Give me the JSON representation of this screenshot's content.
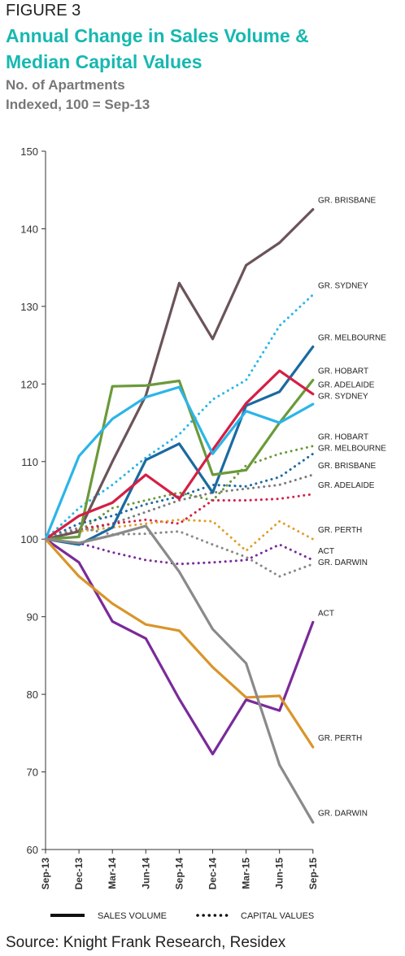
{
  "figure_label": "FIGURE 3",
  "title_line1": "Annual Change in Sales Volume &",
  "title_line2": "Median Capital Values",
  "subtitle_line1": "No. of Apartments",
  "subtitle_line2": "Indexed, 100 = Sep-13",
  "source": "Source: Knight Frank Research, Residex",
  "chart_data": {
    "type": "line",
    "title": "Annual Change in Sales Volume & Median Capital Values",
    "ylim": [
      60,
      150
    ],
    "yticks": [
      60,
      70,
      80,
      90,
      100,
      110,
      120,
      130,
      140,
      150
    ],
    "categories": [
      "Sep-13",
      "Dec-13",
      "Mar-14",
      "Jun-14",
      "Sep-14",
      "Dec-14",
      "Mar-15",
      "Jun-15",
      "Sep-15"
    ],
    "grid": false,
    "legend": [
      {
        "label": "SALES VOLUME",
        "style": "solid"
      },
      {
        "label": "CAPITAL VALUES",
        "style": "dotted"
      }
    ],
    "series": [
      {
        "name": "GR. BRISBANE",
        "style": "solid",
        "color": "#6b5458",
        "values": [
          100,
          101,
          110,
          118.5,
          133,
          125.8,
          135.3,
          138.2,
          142.5
        ]
      },
      {
        "name": "GR. SYDNEY",
        "style": "dotted",
        "color": "#2bb5e8",
        "values": [
          100,
          104,
          107,
          110.5,
          113.5,
          118,
          120.5,
          127.5,
          131.5
        ]
      },
      {
        "name": "GR. MELBOURNE",
        "style": "solid",
        "color": "#1a6aa0",
        "values": [
          100,
          99.3,
          101.5,
          110.2,
          112.3,
          106,
          117.2,
          119,
          124.8
        ]
      },
      {
        "name": "GR. HOBART",
        "style": "solid",
        "color": "#6b9a3a",
        "values": [
          100,
          100.3,
          119.7,
          119.8,
          120.4,
          108.3,
          108.9,
          115,
          120.5
        ]
      },
      {
        "name": "GR. ADELAIDE",
        "style": "solid",
        "color": "#d41f45",
        "values": [
          100,
          103,
          104.7,
          108.3,
          105.2,
          111.5,
          117.5,
          121.7,
          118.7
        ]
      },
      {
        "name": "GR. SYDNEY",
        "style": "solid",
        "color": "#2bb5e8",
        "values": [
          100,
          110.7,
          115.5,
          118.3,
          119.6,
          111,
          116.5,
          115,
          117.4
        ]
      },
      {
        "name": "GR. HOBART",
        "style": "dotted",
        "color": "#6b9a3a",
        "values": [
          100,
          101,
          104,
          105,
          106,
          105,
          109.5,
          111,
          112
        ]
      },
      {
        "name": "GR. MELBOURNE",
        "style": "dotted",
        "color": "#1a6aa0",
        "values": [
          100,
          102,
          103,
          104.5,
          105.5,
          107,
          106.8,
          108,
          111
        ]
      },
      {
        "name": "GR. BRISBANE",
        "style": "dotted",
        "color": "#7a7a7a",
        "values": [
          100,
          101,
          102,
          103.5,
          105,
          106,
          106.5,
          107,
          108.3
        ]
      },
      {
        "name": "GR. ADELAIDE",
        "style": "dotted",
        "color": "#d41f45",
        "values": [
          100,
          101.3,
          102,
          102.5,
          102,
          105,
          105,
          105.2,
          105.8
        ]
      },
      {
        "name": "GR. PERTH",
        "style": "dotted",
        "color": "#e0a030",
        "values": [
          100,
          101,
          101.5,
          102,
          102.5,
          102.3,
          98.5,
          102.3,
          100
        ]
      },
      {
        "name": "ACT",
        "style": "dotted",
        "color": "#7a2a9a",
        "values": [
          100,
          99.5,
          98.3,
          97.3,
          96.8,
          97,
          97.3,
          99.3,
          97.3
        ]
      },
      {
        "name": "GR. DARWIN",
        "style": "dotted",
        "color": "#888888",
        "values": [
          100,
          101.5,
          100.6,
          100.7,
          101,
          99.3,
          97.7,
          95.2,
          96.8
        ]
      },
      {
        "name": "ACT",
        "style": "solid",
        "color": "#7a2a9a",
        "values": [
          100,
          97,
          89.4,
          87.2,
          79.4,
          72.3,
          79.3,
          77.9,
          89.3
        ]
      },
      {
        "name": "GR. PERTH",
        "style": "solid",
        "color": "#d9952a",
        "values": [
          100,
          95.2,
          91.7,
          89,
          88.2,
          83.5,
          79.6,
          79.8,
          73.2
        ]
      },
      {
        "name": "GR. DARWIN",
        "style": "solid",
        "color": "#8a8a8a",
        "values": [
          100,
          99.5,
          100.5,
          101.7,
          95.8,
          88.4,
          84,
          70.9,
          63.5
        ]
      }
    ]
  }
}
